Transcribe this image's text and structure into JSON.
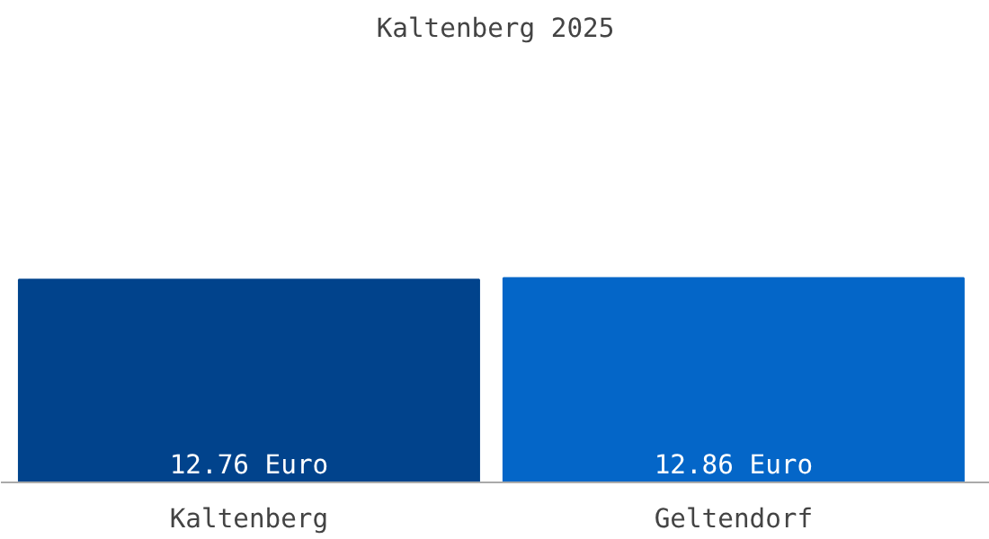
{
  "chart_data": {
    "type": "bar",
    "title": "Kaltenberg 2025",
    "categories": [
      "Kaltenberg",
      "Geltendorf"
    ],
    "values": [
      12.76,
      12.86
    ],
    "colors": [
      "#01438c",
      "#0466c8"
    ],
    "value_labels": [
      "12.76 Euro",
      "12.86 Euro"
    ],
    "grid": false
  }
}
